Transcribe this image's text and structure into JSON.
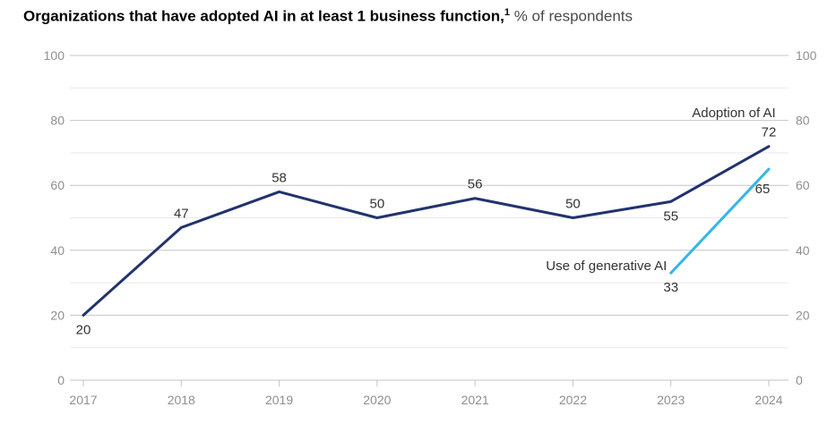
{
  "title": {
    "bold": "Organizations that have adopted AI in at least 1 business function,",
    "superscript": "1",
    "regular": " % of respondents"
  },
  "colors": {
    "adoption_line": "#22336e",
    "genai_line": "#34b6e8",
    "axis_label": "#8f8f8f",
    "data_label": "#333333",
    "grid_major": "#c6c6c6",
    "grid_minor": "#e9e9e9",
    "tick": "#c6c6c6",
    "background": "#ffffff"
  },
  "chart_data": {
    "type": "line",
    "x": [
      2017,
      2018,
      2019,
      2020,
      2021,
      2022,
      2023,
      2024
    ],
    "x_tick_labels": [
      "2017",
      "2018",
      "2019",
      "2020",
      "2021",
      "2022",
      "2023",
      "2024"
    ],
    "y_ticks": [
      0,
      20,
      40,
      60,
      80,
      100
    ],
    "y_tick_labels": [
      "0",
      "20",
      "40",
      "60",
      "80",
      "100"
    ],
    "y_minor_step": 10,
    "ylim": [
      0,
      100
    ],
    "grid": "horizontal",
    "y_axis_sides": [
      "left",
      "right"
    ],
    "legend_position": "inline-annotations",
    "series": [
      {
        "name": "Adoption of AI",
        "color_key": "adoption_line",
        "points": [
          {
            "x": 2017,
            "y": 20,
            "label": "20",
            "label_pos": "below"
          },
          {
            "x": 2018,
            "y": 47,
            "label": "47",
            "label_pos": "above"
          },
          {
            "x": 2019,
            "y": 58,
            "label": "58",
            "label_pos": "above"
          },
          {
            "x": 2020,
            "y": 50,
            "label": "50",
            "label_pos": "above"
          },
          {
            "x": 2021,
            "y": 56,
            "label": "56",
            "label_pos": "above"
          },
          {
            "x": 2022,
            "y": 50,
            "label": "50",
            "label_pos": "above"
          },
          {
            "x": 2023,
            "y": 55,
            "label": "55",
            "label_pos": "below"
          },
          {
            "x": 2024,
            "y": 72,
            "label": "72",
            "label_pos": "above"
          }
        ],
        "annotation": {
          "text": "Adoption of AI",
          "x": 2024.07,
          "y": 82.4,
          "anchor": "end"
        }
      },
      {
        "name": "Use of generative AI",
        "color_key": "genai_line",
        "points": [
          {
            "x": 2023,
            "y": 33,
            "label": "33",
            "label_pos": "below"
          },
          {
            "x": 2024,
            "y": 65,
            "label": "65",
            "label_pos": "below-left"
          }
        ],
        "annotation": {
          "text": "Use of generative AI",
          "x": 2022.96,
          "y": 35.3,
          "anchor": "end"
        }
      }
    ]
  }
}
